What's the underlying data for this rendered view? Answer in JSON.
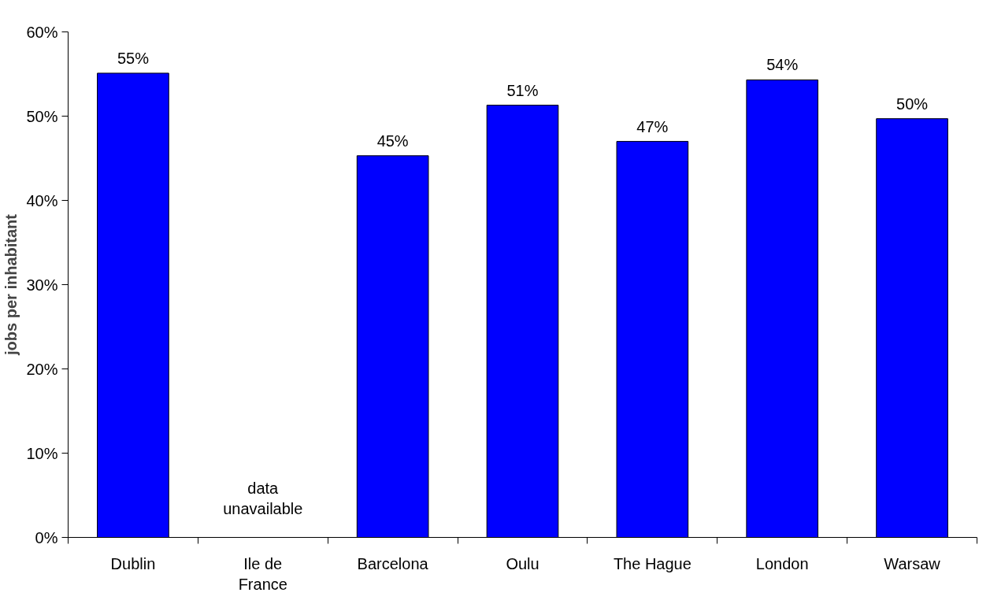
{
  "chart_data": {
    "type": "bar",
    "ylabel": "jobs per inhabitant",
    "categories": [
      "Dublin",
      "Ile de France",
      "Barcelona",
      "Oulu",
      "The Hague",
      "London",
      "Warsaw"
    ],
    "values": [
      55.1,
      null,
      45.3,
      51.3,
      47.0,
      54.3,
      49.7
    ],
    "value_labels": [
      "55%",
      null,
      "45%",
      "51%",
      "47%",
      "54%",
      "50%"
    ],
    "color": "#0000ff",
    "ylim": [
      0,
      60
    ],
    "yticks": [
      {
        "value": 0,
        "label": "0%"
      },
      {
        "value": 10,
        "label": "10%"
      },
      {
        "value": 20,
        "label": "20%"
      },
      {
        "value": 30,
        "label": "30%"
      },
      {
        "value": 40,
        "label": "40%"
      },
      {
        "value": 50,
        "label": "50%"
      },
      {
        "value": 60,
        "label": "60%"
      }
    ],
    "annotations": [
      "data unavailable"
    ]
  }
}
